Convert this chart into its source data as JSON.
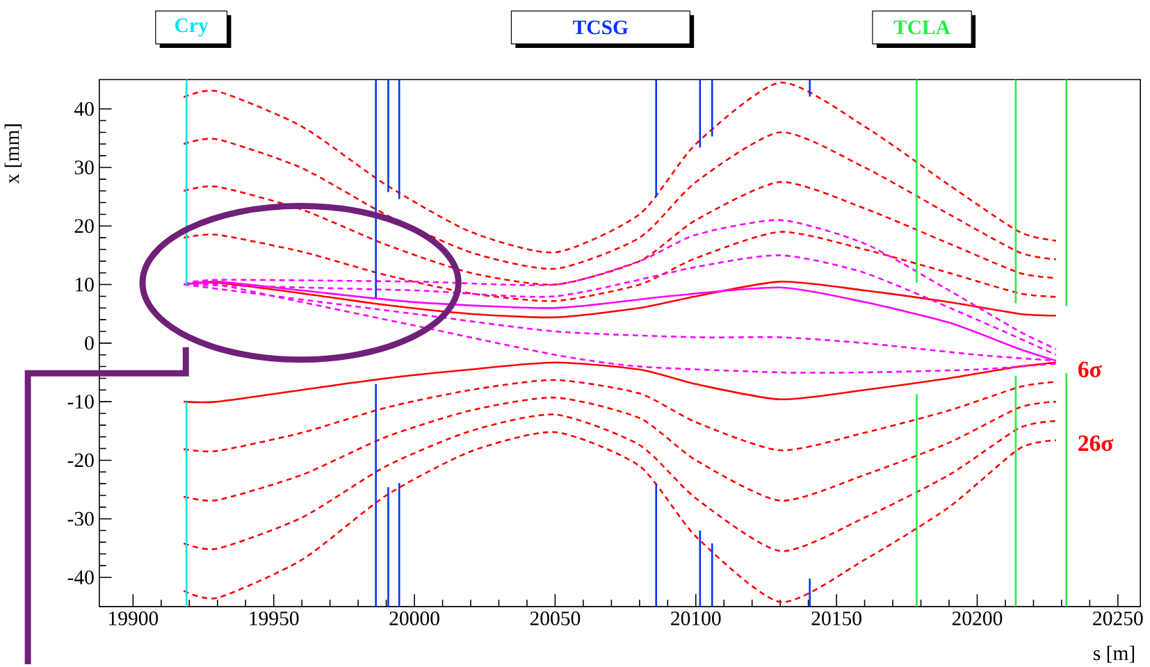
{
  "chart_data": {
    "type": "line",
    "xlabel": "s [m]",
    "ylabel": "x [mm]",
    "xlim": [
      19888,
      20258
    ],
    "xticks": [
      19900,
      19950,
      20000,
      20050,
      20100,
      20150,
      20200,
      20250
    ],
    "ylim": [
      -45,
      45
    ],
    "yticks": [
      -40,
      -30,
      -20,
      -10,
      0,
      10,
      20,
      30,
      40
    ],
    "grid": false,
    "x": [
      19918,
      19930,
      19960,
      19990,
      20020,
      20050,
      20080,
      20100,
      20130,
      20160,
      20190,
      20215,
      20228
    ],
    "series": [
      {
        "color": "#ff0000",
        "line_style": "solid",
        "values": [
          10,
          10.3,
          8.5,
          6.5,
          5,
          4.4,
          6,
          8,
          10.5,
          9,
          7,
          5,
          4.7
        ]
      },
      {
        "color": "#ff0000",
        "line_style": "dashed",
        "values": [
          18,
          18.5,
          15.6,
          11.6,
          8.5,
          7.2,
          10,
          14.5,
          19,
          16,
          12,
          8.5,
          7.9
        ]
      },
      {
        "color": "#ff0000",
        "line_style": "dashed",
        "values": [
          26,
          26.7,
          22.8,
          16.8,
          12,
          10,
          14,
          21,
          27.5,
          23,
          17,
          12,
          11.1
        ]
      },
      {
        "color": "#ff0000",
        "line_style": "dashed",
        "values": [
          34,
          34.8,
          29.9,
          21.9,
          15.5,
          12.7,
          18,
          27.5,
          36,
          30,
          22,
          15.5,
          14.3
        ]
      },
      {
        "color": "#ff0000",
        "line_style": "dashed",
        "values": [
          42,
          43,
          37,
          27,
          19,
          15.5,
          22,
          34,
          44.5,
          37,
          27,
          19,
          17.5
        ]
      },
      {
        "color": "#ff0000",
        "line_style": "solid",
        "values": [
          -10,
          -10,
          -8,
          -6,
          -4.5,
          -3.3,
          -4.5,
          -7,
          -9.6,
          -8,
          -6,
          -4,
          -3.3
        ]
      },
      {
        "color": "#ff0000",
        "line_style": "dashed",
        "values": [
          -18.1,
          -18.4,
          -15.3,
          -11,
          -8,
          -6.3,
          -8.6,
          -13.5,
          -18.3,
          -15.3,
          -11.5,
          -7.5,
          -6.6
        ]
      },
      {
        "color": "#ff0000",
        "line_style": "dashed",
        "values": [
          -26.2,
          -26.8,
          -22.5,
          -16,
          -11.5,
          -9.3,
          -12.8,
          -20,
          -26.9,
          -22.5,
          -17,
          -11,
          -10
        ]
      },
      {
        "color": "#ff0000",
        "line_style": "dashed",
        "values": [
          -34.2,
          -35.1,
          -29.8,
          -21,
          -15,
          -12.2,
          -17.4,
          -26.5,
          -35.5,
          -29.8,
          -22.5,
          -14.5,
          -13.3
        ]
      },
      {
        "color": "#ff0000",
        "line_style": "dashed",
        "values": [
          -42.3,
          -43.5,
          -37,
          -26,
          -18.5,
          -15.2,
          -21,
          -33,
          -44.2,
          -37,
          -28,
          -18,
          -16.6
        ]
      },
      {
        "color": "#ff00ff",
        "line_style": "dashed",
        "x": [
          19918,
          19930,
          20000,
          20050,
          20080,
          20100,
          20130,
          20160,
          20190,
          20215,
          20228
        ],
        "values": [
          10,
          10.8,
          10.5,
          10,
          14,
          18.5,
          21,
          17,
          9,
          2,
          -1
        ]
      },
      {
        "color": "#ff00ff",
        "line_style": "dashed",
        "x": [
          19918,
          20000,
          20050,
          20100,
          20130,
          20160,
          20200,
          20228
        ],
        "values": [
          10,
          9,
          8,
          13,
          15,
          12,
          4,
          -2
        ]
      },
      {
        "color": "#ff00ff",
        "line_style": "solid",
        "x": [
          19918,
          19930,
          19960,
          20000,
          20050,
          20090,
          20130,
          20160,
          20190,
          20215,
          20228
        ],
        "values": [
          10,
          10.5,
          9,
          7,
          6,
          8,
          9.5,
          7,
          3.5,
          -1,
          -3
        ]
      },
      {
        "color": "#ff00ff",
        "line_style": "dashed",
        "x": [
          19918,
          20000,
          20050,
          20100,
          20130,
          20160,
          20200,
          20228
        ],
        "values": [
          10,
          5,
          2,
          1,
          1,
          0,
          -2,
          -3
        ]
      },
      {
        "color": "#ff00ff",
        "line_style": "dashed",
        "x": [
          19918,
          19930,
          19960,
          20000,
          20050,
          20080,
          20130,
          20160,
          20200,
          20228
        ],
        "values": [
          10,
          10,
          7,
          3,
          -2,
          -4,
          -5,
          -5,
          -4.5,
          -3.5
        ]
      },
      {
        "name": "Cry",
        "color": "#00e5ee",
        "line_style": "solid",
        "x": [
          19919,
          19919
        ],
        "values": [
          10,
          45
        ]
      },
      {
        "color": "#00e5ee",
        "line_style": "solid",
        "x": [
          19919,
          19919
        ],
        "values": [
          -45,
          -10
        ]
      },
      {
        "name": "TCSG",
        "color": "#0033ff",
        "line_style": "solid",
        "x": [
          19986.3,
          19986.3
        ],
        "values": [
          7.7,
          45
        ]
      },
      {
        "color": "#0033ff",
        "line_style": "solid",
        "x": [
          19990.7,
          19990.7
        ],
        "values": [
          25.8,
          45
        ]
      },
      {
        "color": "#0033ff",
        "line_style": "solid",
        "x": [
          19994.6,
          19994.6
        ],
        "values": [
          24.6,
          45
        ]
      },
      {
        "color": "#0033ff",
        "line_style": "solid",
        "x": [
          20085.9,
          20085.9
        ],
        "values": [
          25,
          45
        ]
      },
      {
        "color": "#0033ff",
        "line_style": "solid",
        "x": [
          20101.5,
          20101.5
        ],
        "values": [
          33.4,
          45
        ]
      },
      {
        "color": "#0033ff",
        "line_style": "solid",
        "x": [
          20105.8,
          20105.8
        ],
        "values": [
          35.3,
          45
        ]
      },
      {
        "color": "#0033ff",
        "line_style": "solid",
        "x": [
          20140.5,
          20140.5
        ],
        "values": [
          42.1,
          45
        ]
      },
      {
        "color": "#0033ff",
        "line_style": "solid",
        "x": [
          19986.3,
          19986.3
        ],
        "values": [
          -45,
          -7
        ]
      },
      {
        "color": "#0033ff",
        "line_style": "solid",
        "x": [
          19990.7,
          19990.7
        ],
        "values": [
          -45,
          -24.6
        ]
      },
      {
        "color": "#0033ff",
        "line_style": "solid",
        "x": [
          19994.6,
          19994.6
        ],
        "values": [
          -45,
          -23.9
        ]
      },
      {
        "color": "#0033ff",
        "line_style": "solid",
        "x": [
          20085.9,
          20085.9
        ],
        "values": [
          -45,
          -24.1
        ]
      },
      {
        "color": "#0033ff",
        "line_style": "solid",
        "x": [
          20101.5,
          20101.5
        ],
        "values": [
          -45,
          -32
        ]
      },
      {
        "color": "#0033ff",
        "line_style": "solid",
        "x": [
          20105.8,
          20105.8
        ],
        "values": [
          -45,
          -34.2
        ]
      },
      {
        "color": "#0033ff",
        "line_style": "solid",
        "x": [
          20140.5,
          20140.5
        ],
        "values": [
          -45,
          -40.2
        ]
      },
      {
        "name": "TCLA",
        "color": "#22ee44",
        "line_style": "solid",
        "x": [
          20178.5,
          20178.5
        ],
        "values": [
          10.3,
          45
        ]
      },
      {
        "color": "#22ee44",
        "line_style": "solid",
        "x": [
          20213.7,
          20213.7
        ],
        "values": [
          6.8,
          45
        ]
      },
      {
        "color": "#22ee44",
        "line_style": "solid",
        "x": [
          20231.7,
          20231.7
        ],
        "values": [
          6.3,
          45
        ]
      },
      {
        "color": "#22ee44",
        "line_style": "solid",
        "x": [
          20178.5,
          20178.5
        ],
        "values": [
          -45,
          -8.7
        ]
      },
      {
        "color": "#22ee44",
        "line_style": "solid",
        "x": [
          20213.7,
          20213.7
        ],
        "values": [
          -45,
          -5.6
        ]
      },
      {
        "color": "#22ee44",
        "line_style": "solid",
        "x": [
          20231.7,
          20231.7
        ],
        "values": [
          -45,
          -5.1
        ]
      }
    ],
    "annotations": [
      "6σ",
      "26σ"
    ]
  }
}
